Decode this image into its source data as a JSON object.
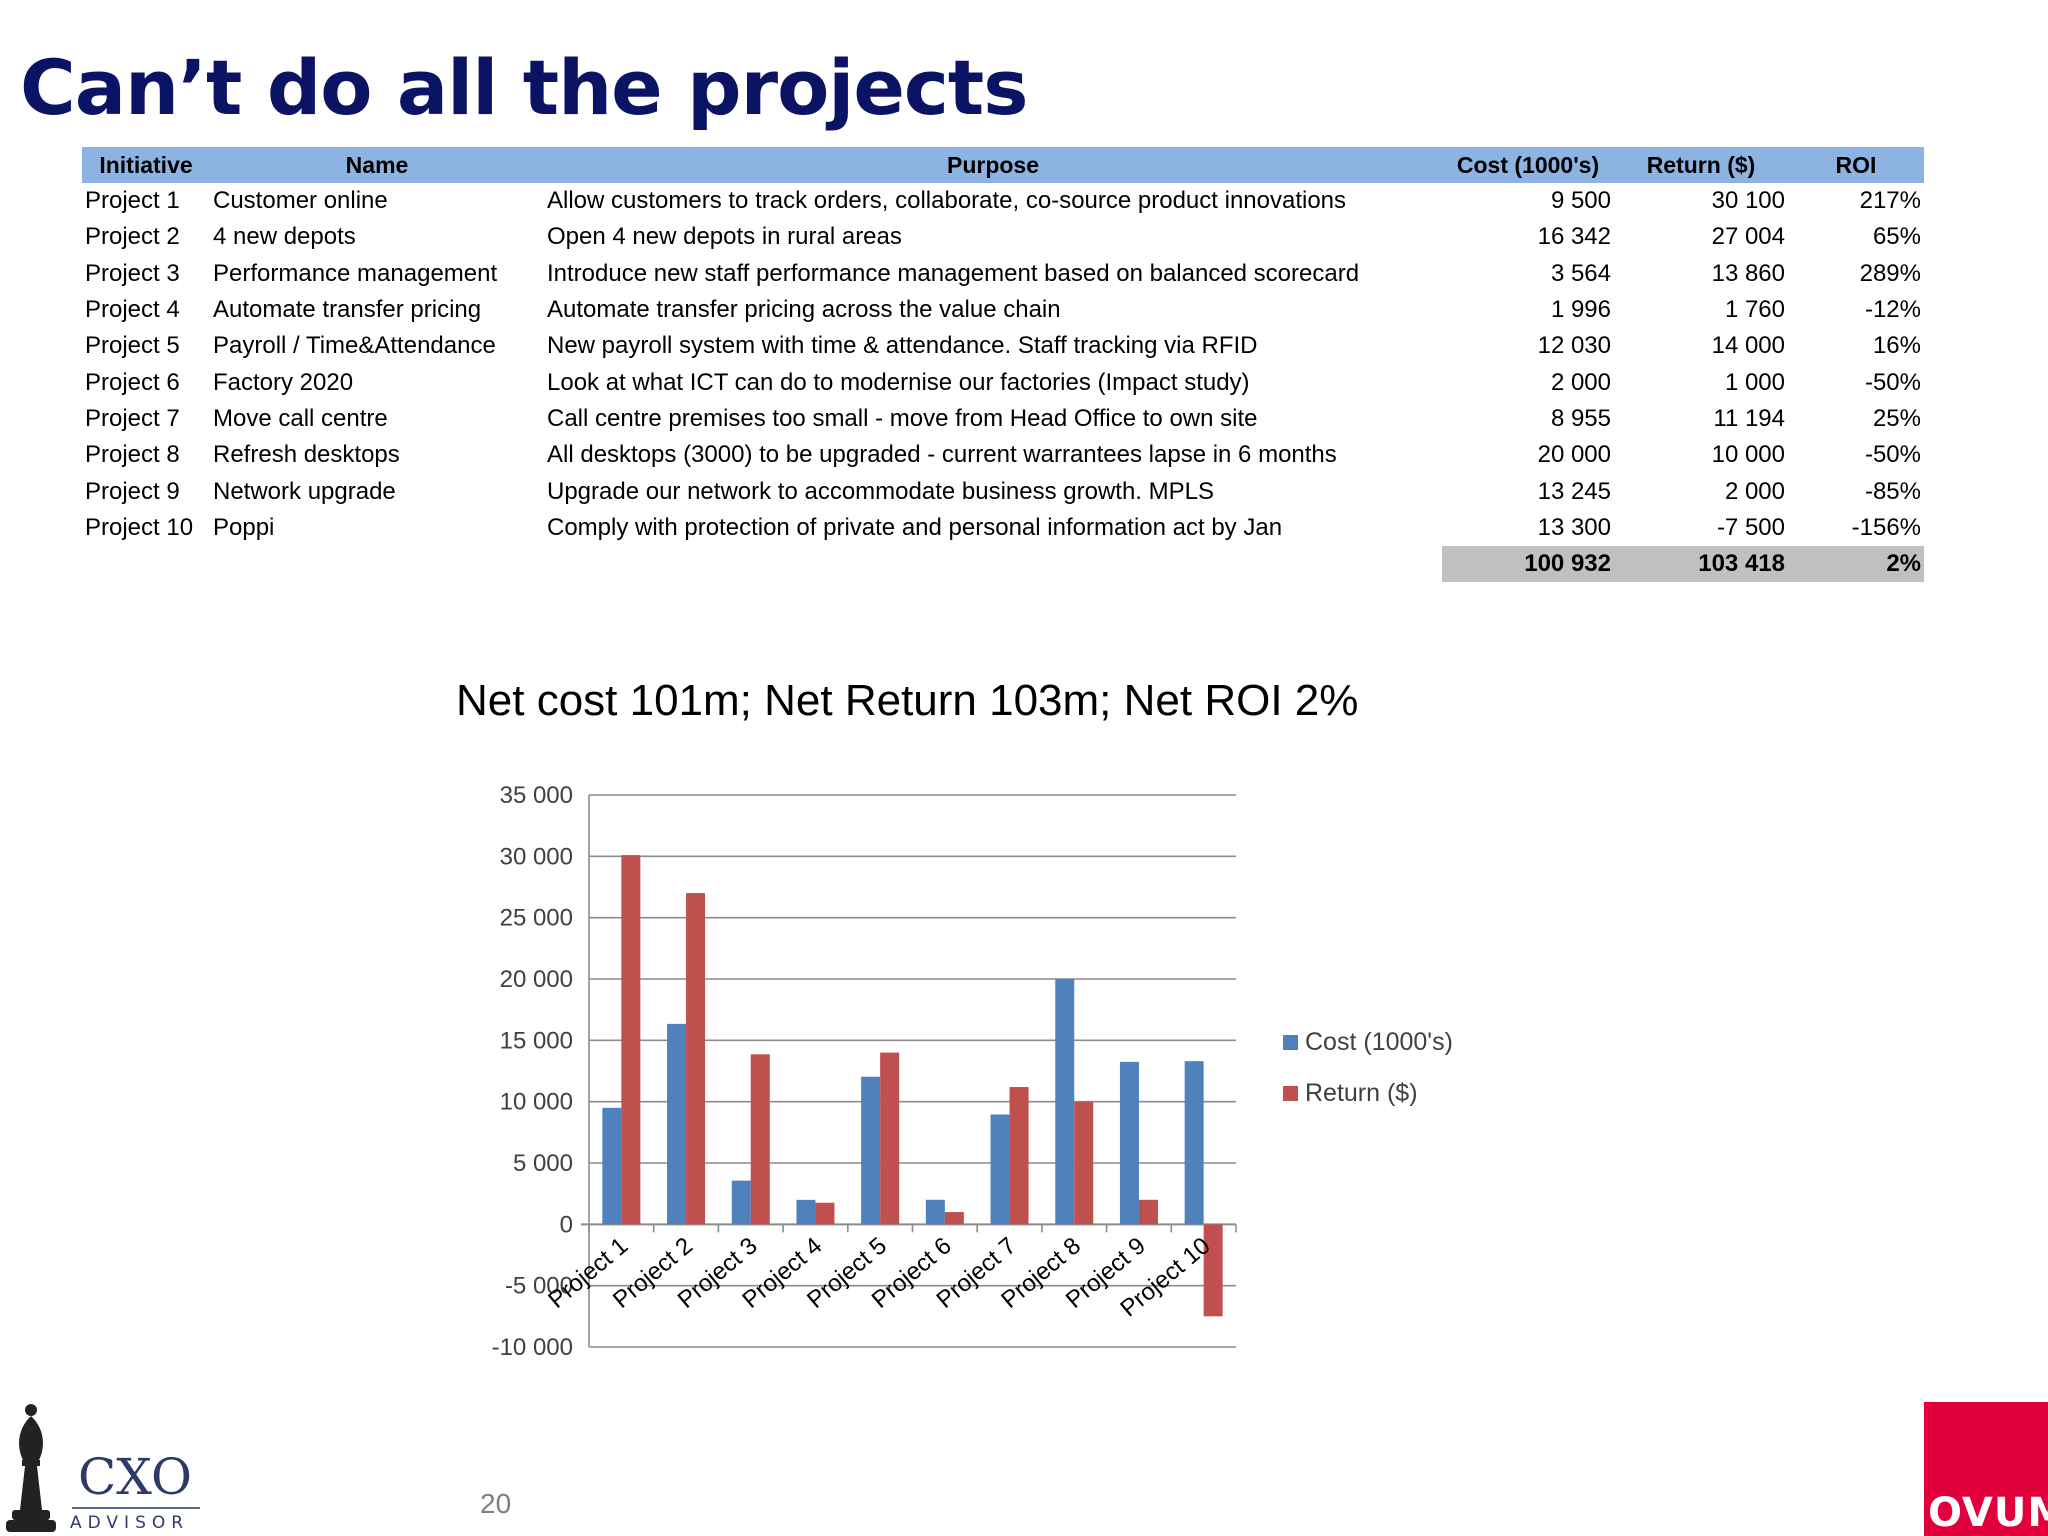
{
  "slide": {
    "title": "Can’t do all the projects",
    "page_number": "20"
  },
  "table": {
    "headers": [
      "Initiative",
      "Name",
      "Purpose",
      "Cost (1000's)",
      "Return ($)",
      "ROI"
    ],
    "rows": [
      [
        "Project 1",
        "Customer online",
        "Allow customers to track orders, collaborate, co-source product innovations",
        "9 500",
        "30 100",
        "217%"
      ],
      [
        "Project 2",
        "4 new depots",
        "Open 4 new depots in rural areas",
        "16 342",
        "27 004",
        "65%"
      ],
      [
        "Project 3",
        "Performance management",
        "Introduce new staff performance management based on balanced scorecard",
        "3 564",
        "13 860",
        "289%"
      ],
      [
        "Project 4",
        "Automate transfer pricing",
        "Automate transfer pricing across the value chain",
        "1 996",
        "1 760",
        "-12%"
      ],
      [
        "Project 5",
        "Payroll / Time&Attendance",
        "New payroll system with time & attendance. Staff tracking via RFID",
        "12 030",
        "14 000",
        "16%"
      ],
      [
        "Project 6",
        "Factory 2020",
        "Look at what ICT can do to modernise our factories (Impact study)",
        "2 000",
        "1 000",
        "-50%"
      ],
      [
        "Project 7",
        "Move call centre",
        "Call centre premises too small - move from Head Office to own site",
        "8 955",
        "11 194",
        "25%"
      ],
      [
        "Project 8",
        "Refresh desktops",
        "All desktops (3000) to be upgraded - current warrantees lapse in 6 months",
        "20 000",
        "10 000",
        "-50%"
      ],
      [
        "Project 9",
        "Network upgrade",
        "Upgrade our network to accommodate business growth. MPLS",
        "13 245",
        "2 000",
        "-85%"
      ],
      [
        "Project 10",
        "Poppi",
        "Comply with protection of private and personal information act by Jan",
        "13 300",
        "-7 500",
        "-156%"
      ]
    ],
    "totals": [
      "100 932",
      "103 418",
      "2%"
    ]
  },
  "chart_data": {
    "type": "bar",
    "title": "Net cost 101m; Net Return 103m; Net ROI 2%",
    "xlabel": "",
    "ylabel": "",
    "categories": [
      "Project 1",
      "Project 2",
      "Project 3",
      "Project 4",
      "Project 5",
      "Project 6",
      "Project 7",
      "Project 8",
      "Project 9",
      "Project 10"
    ],
    "series": [
      {
        "name": "Cost (1000's)",
        "color": "#4f81bd",
        "values": [
          9500,
          16342,
          3564,
          1996,
          12030,
          2000,
          8955,
          20000,
          13245,
          13300
        ]
      },
      {
        "name": "Return ($)",
        "color": "#c0504d",
        "values": [
          30100,
          27004,
          13860,
          1760,
          14000,
          1000,
          11194,
          10000,
          2000,
          -7500
        ]
      }
    ],
    "ylim": [
      -10000,
      35000
    ],
    "yticks": [
      35000,
      30000,
      25000,
      20000,
      15000,
      10000,
      5000,
      0,
      -5000,
      -10000
    ],
    "ytick_labels": [
      "35 000",
      "30 000",
      "25 000",
      "20 000",
      "15 000",
      "10 000",
      "5 000",
      "0",
      "-5 000",
      "-10 000"
    ],
    "grid": true,
    "legend_position": "right"
  },
  "logos": {
    "cxo_top": "CXO",
    "cxo_bottom": "ADVISOR",
    "ovum": "OVUM"
  }
}
